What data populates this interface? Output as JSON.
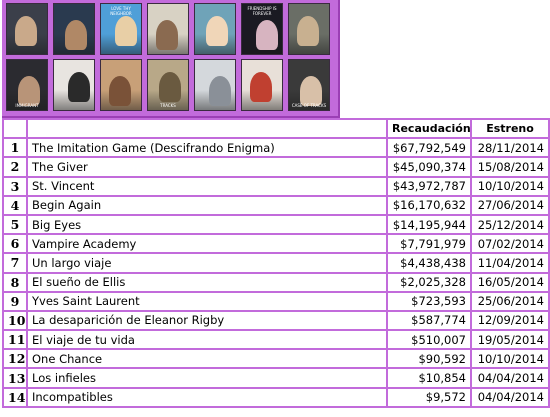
{
  "posters": [
    {
      "name": "poster-imitation-game",
      "bg": "#3b3f4a",
      "fig": "#c9a98a",
      "top": "",
      "bot": ""
    },
    {
      "name": "poster-the-giver",
      "bg": "#2a3a4f",
      "fig": "#b08866",
      "top": "",
      "bot": ""
    },
    {
      "name": "poster-st-vincent",
      "bg": "#4f9fd8",
      "fig": "#e8cfa6",
      "top": "LOVE THY NEIGHBOR",
      "bot": ""
    },
    {
      "name": "poster-begin-again",
      "bg": "#d8d2c4",
      "fig": "#8a6a50",
      "top": "",
      "bot": ""
    },
    {
      "name": "poster-big-eyes",
      "bg": "#6fa3b8",
      "fig": "#f0d6b8",
      "top": "",
      "bot": ""
    },
    {
      "name": "poster-vampire-academy",
      "bg": "#1a1a22",
      "fig": "#d7b4c0",
      "top": "FRIENDSHIP IS FOREVER",
      "bot": ""
    },
    {
      "name": "poster-un-largo-viaje",
      "bg": "#6a6e66",
      "fig": "#c8b090",
      "top": "",
      "bot": ""
    },
    {
      "name": "poster-el-sueno-de-ellis",
      "bg": "#2b2b30",
      "fig": "#b89478",
      "top": "",
      "bot": "IMMIGRANT"
    },
    {
      "name": "poster-yves-saint-laurent",
      "bg": "#e8e4e0",
      "fig": "#2a2a2a",
      "top": "",
      "bot": ""
    },
    {
      "name": "poster-eleanor-rigby",
      "bg": "#c8a078",
      "fig": "#7a5238",
      "top": "",
      "bot": ""
    },
    {
      "name": "poster-viaje-de-tu-vida",
      "bg": "#b8a888",
      "fig": "#6a5a40",
      "top": "",
      "bot": "TRACKS"
    },
    {
      "name": "poster-one-chance",
      "bg": "#d4d8dc",
      "fig": "#8a9098",
      "top": "",
      "bot": ""
    },
    {
      "name": "poster-los-infieles",
      "bg": "#e8e0d8",
      "fig": "#c04030",
      "top": "",
      "bot": ""
    },
    {
      "name": "poster-incompatibles",
      "bg": "#3a3a3a",
      "fig": "#d8c0a8",
      "top": "",
      "bot": "CASE OF TRACKS"
    }
  ],
  "table": {
    "headers": [
      "",
      "",
      "Recaudación",
      "Estreno"
    ],
    "rows": [
      {
        "rank": "1",
        "title": "The Imitation Game (Descifrando Enigma)",
        "gross": "$67,792,549",
        "release": "28/11/2014"
      },
      {
        "rank": "2",
        "title": "The Giver",
        "gross": "$45,090,374",
        "release": "15/08/2014"
      },
      {
        "rank": "3",
        "title": "St. Vincent",
        "gross": "$43,972,787",
        "release": "10/10/2014"
      },
      {
        "rank": "4",
        "title": "Begin Again",
        "gross": "$16,170,632",
        "release": "27/06/2014"
      },
      {
        "rank": "5",
        "title": "Big Eyes",
        "gross": "$14,195,944",
        "release": "25/12/2014"
      },
      {
        "rank": "6",
        "title": "Vampire Academy",
        "gross": "$7,791,979",
        "release": "07/02/2014"
      },
      {
        "rank": "7",
        "title": "Un largo viaje",
        "gross": "$4,438,438",
        "release": "11/04/2014"
      },
      {
        "rank": "8",
        "title": "El sueño de Ellis",
        "gross": "$2,025,328",
        "release": "16/05/2014"
      },
      {
        "rank": "9",
        "title": "Yves Saint Laurent",
        "gross": "$723,593",
        "release": "25/06/2014"
      },
      {
        "rank": "10",
        "title": "La desaparición de Eleanor Rigby",
        "gross": "$587,774",
        "release": "12/09/2014"
      },
      {
        "rank": "11",
        "title": "El viaje de tu vida",
        "gross": "$510,007",
        "release": "19/05/2014"
      },
      {
        "rank": "12",
        "title": "One Chance",
        "gross": "$90,592",
        "release": "10/10/2014"
      },
      {
        "rank": "13",
        "title": "Los infieles",
        "gross": "$10,854",
        "release": "04/04/2014"
      },
      {
        "rank": "14",
        "title": "Incompatibles",
        "gross": "$9,572",
        "release": "04/04/2014"
      }
    ]
  },
  "colors": {
    "border": "#c26bdb",
    "panel": "#c26bdb"
  }
}
